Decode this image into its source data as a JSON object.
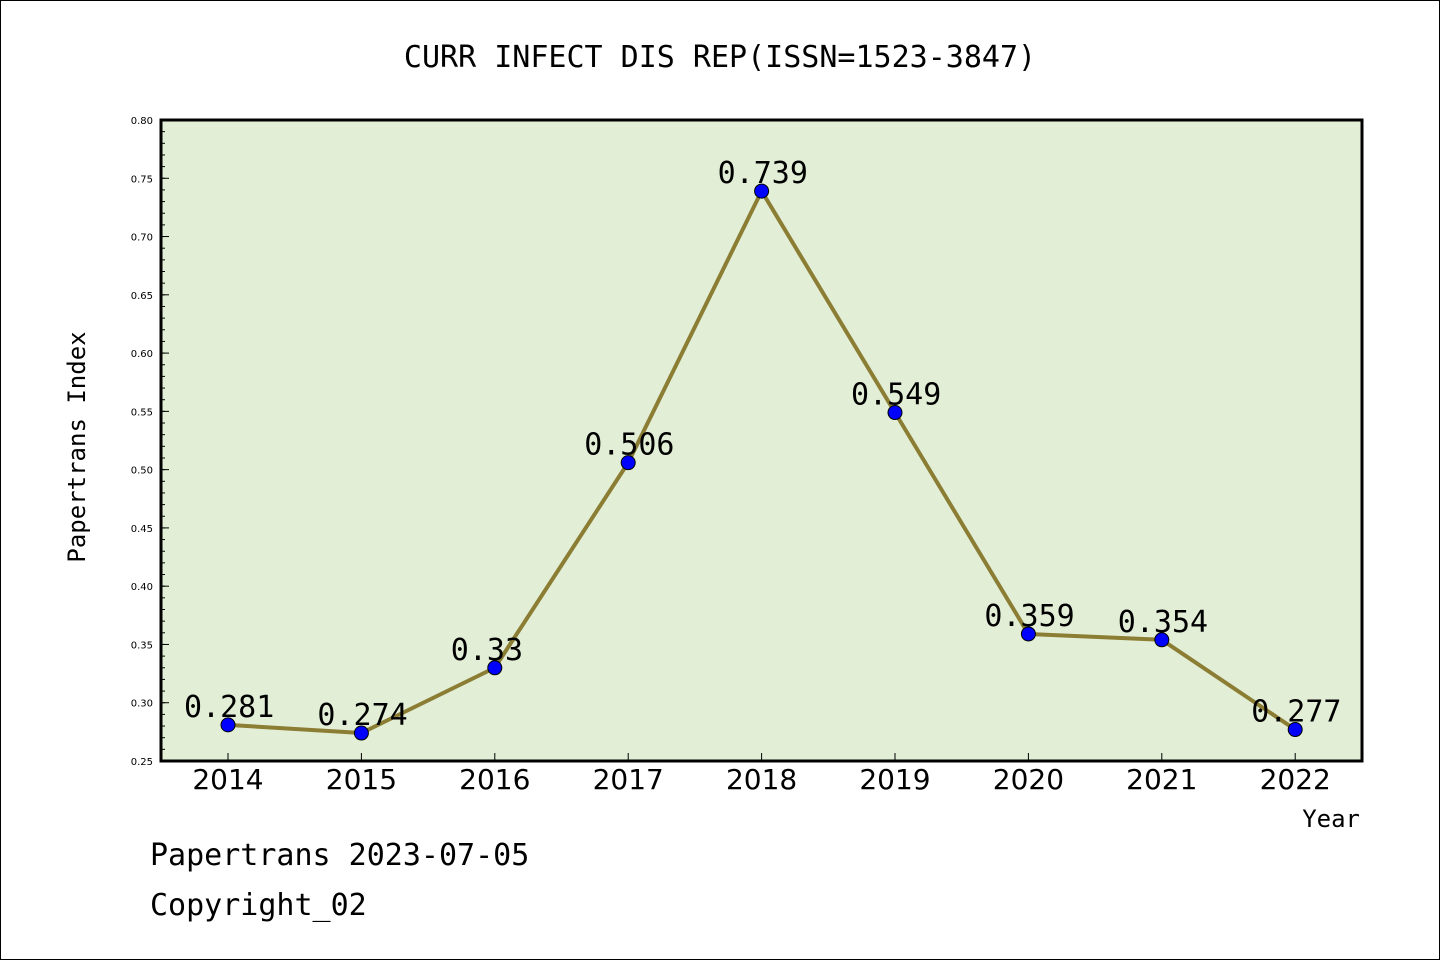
{
  "chart_data": {
    "type": "line",
    "title": "CURR INFECT DIS REP(ISSN=1523-3847)",
    "xlabel": "Year",
    "ylabel": "Papertrans Index",
    "categories": [
      "2014",
      "2015",
      "2016",
      "2017",
      "2018",
      "2019",
      "2020",
      "2021",
      "2022"
    ],
    "values": [
      0.281,
      0.274,
      0.33,
      0.506,
      0.739,
      0.549,
      0.359,
      0.354,
      0.277
    ],
    "data_labels": [
      "0.281",
      "0.274",
      "0.33",
      "0.506",
      "0.739",
      "0.549",
      "0.359",
      "0.354",
      "0.277"
    ],
    "ylim": [
      0.25,
      0.8
    ],
    "yticks": [
      "0.25",
      "0.30",
      "0.35",
      "0.40",
      "0.45",
      "0.50",
      "0.55",
      "0.60",
      "0.65",
      "0.70",
      "0.75",
      "0.80"
    ],
    "grid": false,
    "colors": {
      "plot_background": "#e2efd6",
      "line": "#8b7d33",
      "marker": "#0000ff"
    }
  },
  "footer": {
    "line1": "Papertrans 2023-07-05",
    "line2": "Copyright_02"
  }
}
